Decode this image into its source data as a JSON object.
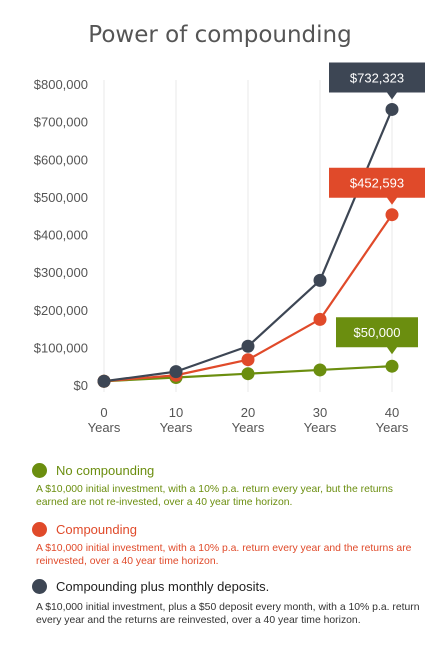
{
  "title": "Power of compounding",
  "colors": {
    "no_compounding": "#6b8e0f",
    "compounding": "#e04a2a",
    "monthly": "#3d4654",
    "grid": "#e8e8e8",
    "axis_text": "#555555"
  },
  "chart_data": {
    "type": "line",
    "title": "Power of compounding",
    "categories": [
      "0\nYears",
      "10\nYears",
      "20\nYears",
      "30\nYears",
      "40\nYears"
    ],
    "x": [
      0,
      10,
      20,
      30,
      40
    ],
    "x_tick_labels": [
      {
        "num": "0",
        "unit": "Years"
      },
      {
        "num": "10",
        "unit": "Years"
      },
      {
        "num": "20",
        "unit": "Years"
      },
      {
        "num": "30",
        "unit": "Years"
      },
      {
        "num": "40",
        "unit": "Years"
      }
    ],
    "y_tick_labels": [
      "$0",
      "$100,000",
      "$200,000",
      "$300,000",
      "$400,000",
      "$500,000",
      "$600,000",
      "$700,000",
      "$800,000"
    ],
    "y_ticks": [
      0,
      100000,
      200000,
      300000,
      400000,
      500000,
      600000,
      700000,
      800000
    ],
    "ylim": [
      0,
      800000
    ],
    "xlim": [
      0,
      40
    ],
    "grid": "vertical",
    "series": [
      {
        "key": "no_compounding",
        "values": [
          10000,
          20000,
          30000,
          40000,
          50000
        ],
        "callout": "$50,000"
      },
      {
        "key": "compounding",
        "values": [
          10000,
          25937,
          67275,
          174494,
          452593
        ],
        "callout": "$452,593"
      },
      {
        "key": "monthly",
        "values": [
          10000,
          35500,
          103000,
          278000,
          732323
        ],
        "callout": "$732,323"
      }
    ]
  },
  "legend": [
    {
      "key": "no_compounding",
      "name": "No compounding",
      "desc": "A $10,000 initial investment, with a 10% p.a. return every year, but the returns earned are not re-invested, over a 40 year time horizon."
    },
    {
      "key": "compounding",
      "name": "Compounding",
      "desc": "A $10,000 initial investment, with a 10% p.a. return every year and the returns are reinvested, over a 40 year time horizon."
    },
    {
      "key": "monthly",
      "name": "Compounding plus monthly deposits.",
      "desc": "A $10,000 initial investment, plus a $50 deposit every month, with a 10% p.a. return every year and the returns are reinvested, over a 40 year time horizon."
    }
  ]
}
